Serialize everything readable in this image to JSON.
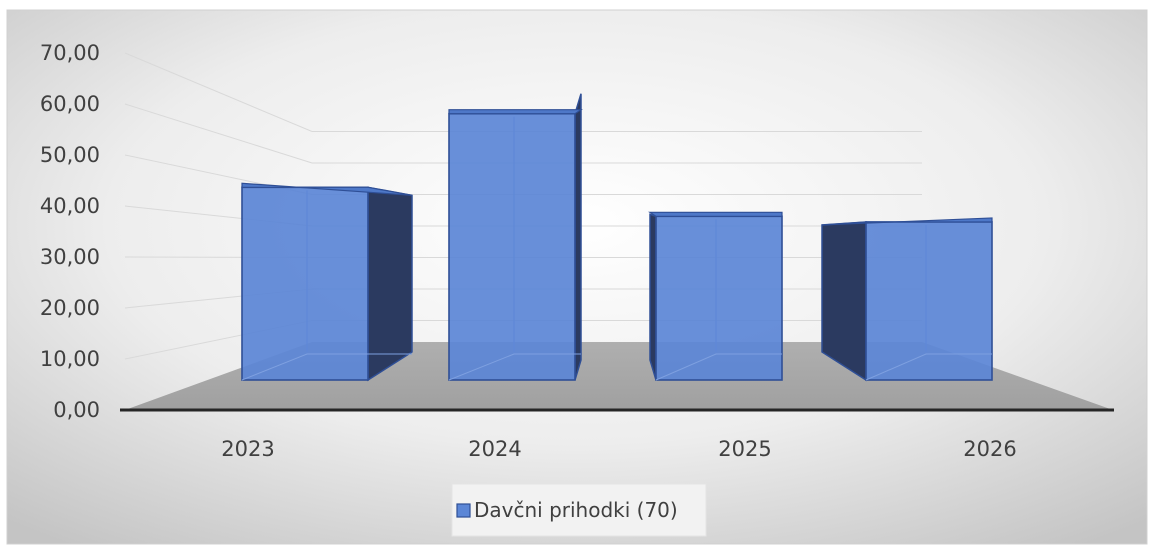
{
  "chart_data": {
    "type": "bar",
    "title": "",
    "xlabel": "",
    "ylabel": "",
    "categories": [
      "2023",
      "2024",
      "2025",
      "2026"
    ],
    "series": [
      {
        "name": "Davčni prihodki (70)",
        "values": [
          44.5,
          61.5,
          37.8,
          36.5
        ]
      }
    ],
    "ylim": [
      0,
      70
    ],
    "yticks": [
      "0,00",
      "10,00",
      "20,00",
      "30,00",
      "40,00",
      "50,00",
      "60,00",
      "70,00"
    ],
    "grid": true,
    "style": "3d-column",
    "legend_position": "bottom",
    "colors": {
      "bar_front": "#5B86D6",
      "bar_edge": "#2F4F96",
      "bar_side_dark": "#2B3A60",
      "floor": "#A5A5A5",
      "axis": "#262626",
      "gridline": "#D9D9D9",
      "background_center": "#FFFFFF",
      "background_edge": "#C8C8C8"
    }
  }
}
